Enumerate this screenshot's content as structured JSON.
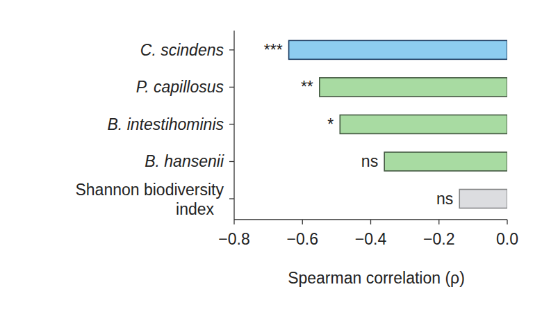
{
  "chart_data": {
    "type": "bar",
    "orientation": "horizontal",
    "categories": [
      "C. scindens",
      "P. capillosus",
      "B. intestihominis",
      "B. hansenii",
      "Shannon biodiversity index"
    ],
    "values": [
      -0.64,
      -0.55,
      -0.49,
      -0.36,
      -0.14
    ],
    "colors": [
      "#8dcdf0",
      "#a8dba2",
      "#a8dba2",
      "#a8dba2",
      "#dcdde0"
    ],
    "annotations": [
      "***",
      "**",
      "*",
      "ns",
      "ns"
    ],
    "x_label": "Spearman correlation (ρ)",
    "xlim": [
      -0.8,
      0
    ],
    "xticks": [
      {
        "value": -0.8,
        "label": "−0.8"
      },
      {
        "value": -0.6,
        "label": "−0.6"
      },
      {
        "value": -0.4,
        "label": "−0.4"
      },
      {
        "value": -0.2,
        "label": "−0.2"
      },
      {
        "value": 0,
        "label": "0.0"
      }
    ],
    "grid": false
  }
}
